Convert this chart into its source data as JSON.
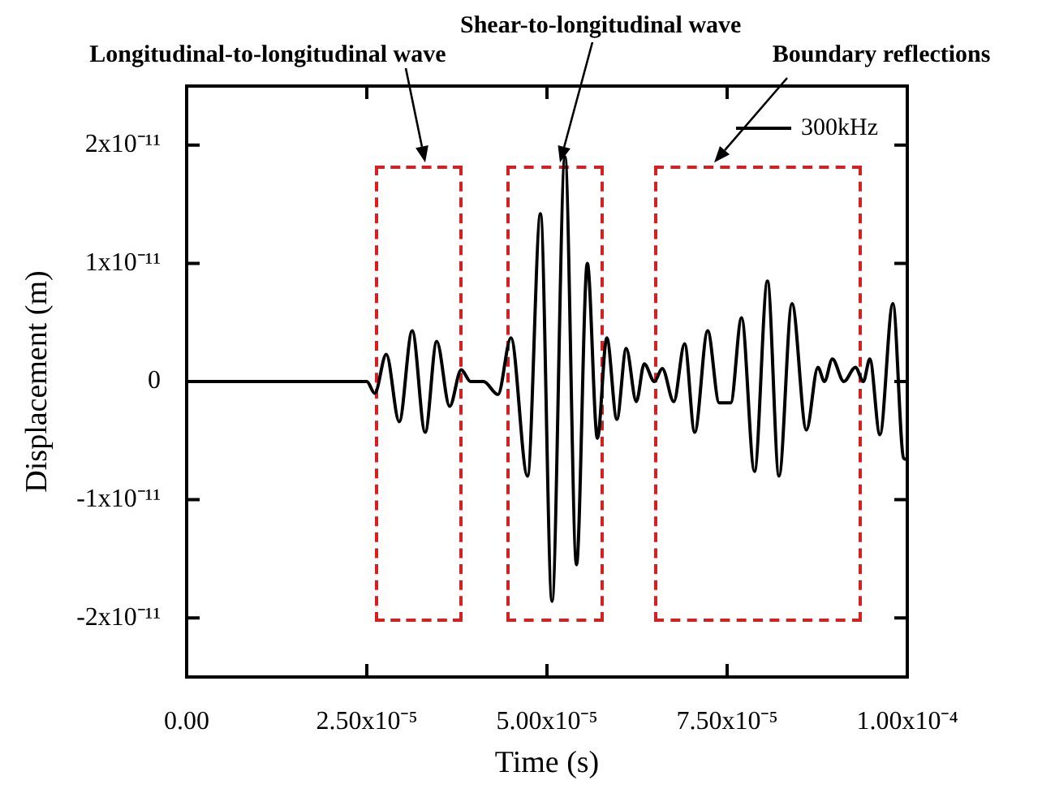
{
  "chart_data": {
    "type": "line",
    "xlabel": "Time (s)",
    "ylabel": "Displacement (m)",
    "xlim": [
      0,
      0.0001
    ],
    "ylim": [
      -2.5e-11,
      2.5e-11
    ],
    "xticks": [
      {
        "value": 0,
        "label": "0.00"
      },
      {
        "value": 2.5e-05,
        "label": "2.50x10⁻⁵"
      },
      {
        "value": 5e-05,
        "label": "5.00x10⁻⁵"
      },
      {
        "value": 7.5e-05,
        "label": "7.50x10⁻⁵"
      },
      {
        "value": 0.0001,
        "label": "1.00x10⁻⁴"
      }
    ],
    "yticks": [
      {
        "value": -2e-11,
        "label": "-2x10⁻¹¹"
      },
      {
        "value": -1e-11,
        "label": "-1x10⁻¹¹"
      },
      0,
      {
        "value": 1e-11,
        "label": "1x10⁻¹¹"
      },
      {
        "value": 2e-11,
        "label": "2x10⁻¹¹"
      }
    ],
    "legend": "top right",
    "marker": "none",
    "annotations": [
      "Longitudinal-to-longitudinal wave",
      "Shear-to-longitudinal wave",
      "Boundary reflections"
    ],
    "series": [
      {
        "name": "300kHz",
        "color": "#000000",
        "x": [
          0,
          2.365e-05,
          2.5e-05,
          2.61e-05,
          2.77e-05,
          2.95e-05,
          3.13e-05,
          3.31e-05,
          3.47e-05,
          3.65e-05,
          3.81e-05,
          3.94e-05,
          4.12e-05,
          4.32e-05,
          4.5e-05,
          4.73e-05,
          4.91e-05,
          5.07e-05,
          5.25e-05,
          5.41e-05,
          5.56e-05,
          5.7e-05,
          5.83e-05,
          5.97e-05,
          6.1e-05,
          6.24e-05,
          6.35e-05,
          6.49e-05,
          6.6e-05,
          6.76e-05,
          6.91e-05,
          7.05e-05,
          7.23e-05,
          7.39e-05,
          7.55e-05,
          7.7e-05,
          7.88e-05,
          8.06e-05,
          8.22e-05,
          8.4e-05,
          8.6e-05,
          8.76e-05,
          8.85e-05,
          8.96e-05,
          9.12e-05,
          9.28e-05,
          9.39e-05,
          9.48e-05,
          9.62e-05,
          9.8e-05,
          9.95e-05,
          0.0001
        ],
        "values": [
          0,
          0,
          0,
          -1e-12,
          2.3e-12,
          -3.4e-12,
          4.3e-12,
          -4.3e-12,
          3.4e-12,
          -2.1e-12,
          1e-12,
          0,
          0,
          -1.1e-12,
          3.7e-12,
          -8e-12,
          1.42e-11,
          -1.86e-11,
          1.9e-11,
          -1.55e-11,
          1e-11,
          -4.8e-12,
          3.7e-12,
          -3.2e-12,
          2.8e-12,
          -1.7e-12,
          1.5e-12,
          0,
          1.1e-12,
          -1.7e-12,
          3.2e-12,
          -4.3e-12,
          4.3e-12,
          -1.8e-12,
          -1.8e-12,
          5.4e-12,
          -7.6e-12,
          8.5e-12,
          -8e-12,
          6.6e-12,
          -4.1e-12,
          1.2e-12,
          0,
          1.9e-12,
          0,
          1.2e-12,
          0,
          1.9e-12,
          -4.5e-12,
          6.6e-12,
          -6.5e-12,
          -6.6e-12
        ]
      }
    ]
  }
}
